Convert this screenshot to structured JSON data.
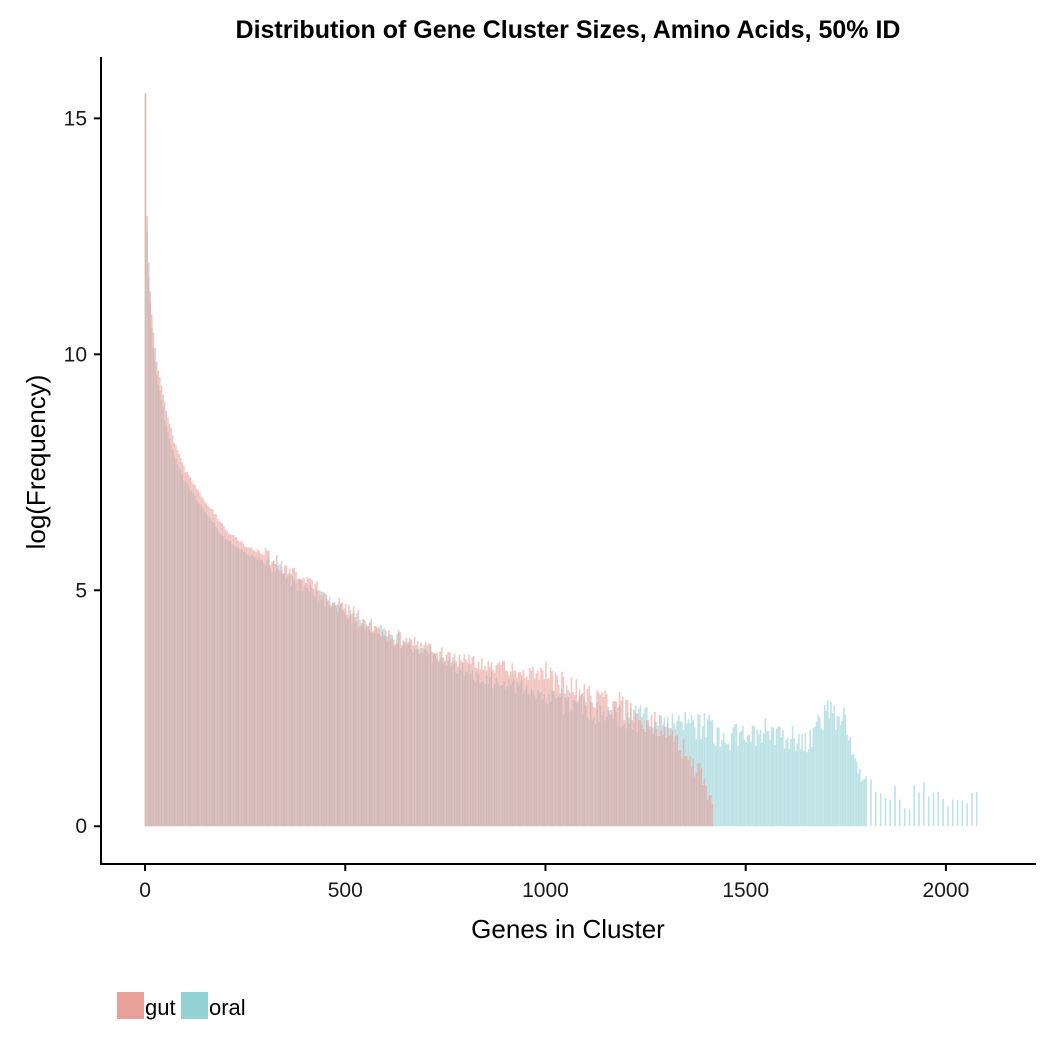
{
  "chart_data": {
    "type": "bar",
    "title": "Distribution of Gene Cluster Sizes, Amino Acids, 50% ID",
    "xlabel": "Genes in Cluster",
    "ylabel": "log(Frequency)",
    "xlim": [
      -110,
      2225
    ],
    "ylim": [
      -0.8,
      16.3
    ],
    "xticks": [
      0,
      500,
      1000,
      1500,
      2000
    ],
    "yticks": [
      0,
      5,
      10,
      15
    ],
    "grid": false,
    "legend_position": "bottom-left",
    "series": [
      {
        "name": "gut",
        "color": "#e8a09a",
        "x": [
          1,
          5,
          10,
          20,
          30,
          50,
          75,
          100,
          150,
          200,
          250,
          300,
          350,
          400,
          500,
          600,
          700,
          800,
          900,
          1000,
          1100,
          1200,
          1300,
          1350,
          1400,
          1420
        ],
        "values": [
          15.5,
          12.9,
          11.7,
          10.5,
          9.8,
          8.9,
          8.1,
          7.55,
          6.9,
          6.3,
          5.95,
          5.75,
          5.45,
          5.2,
          4.6,
          4.1,
          3.75,
          3.5,
          3.35,
          3.2,
          2.8,
          2.5,
          2.0,
          1.6,
          0.9,
          0.3
        ]
      },
      {
        "name": "oral",
        "color": "#93d2d6",
        "x": [
          1,
          5,
          10,
          20,
          30,
          50,
          75,
          100,
          150,
          200,
          250,
          300,
          350,
          400,
          500,
          600,
          700,
          800,
          900,
          1000,
          1100,
          1200,
          1300,
          1400,
          1450,
          1500,
          1550,
          1600,
          1650,
          1700,
          1750,
          1780,
          1800,
          1850,
          1900,
          1950,
          2000,
          2050,
          2080
        ],
        "values": [
          15.5,
          12.6,
          11.4,
          10.2,
          9.5,
          8.6,
          7.8,
          7.3,
          6.65,
          6.1,
          5.8,
          5.6,
          5.3,
          5.05,
          4.5,
          4.05,
          3.7,
          3.3,
          3.0,
          2.8,
          2.5,
          2.3,
          2.2,
          2.1,
          1.9,
          1.85,
          2.0,
          1.9,
          1.8,
          2.4,
          2.2,
          1.2,
          1.0,
          0.7,
          0.6,
          0.7,
          0.7,
          0.6,
          1.0
        ]
      }
    ]
  }
}
